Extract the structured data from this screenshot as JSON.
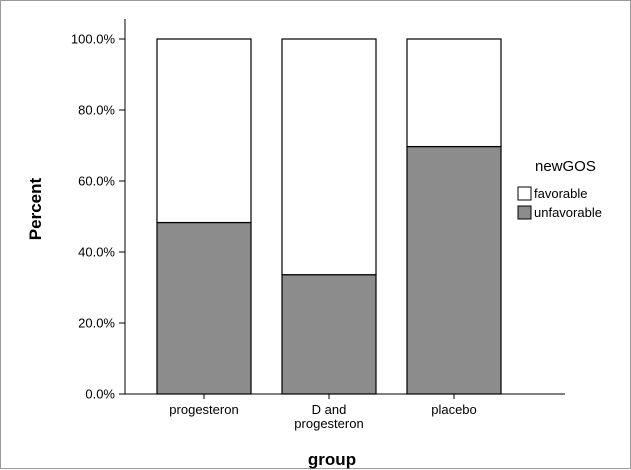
{
  "chart_data": {
    "type": "bar",
    "stacked": true,
    "categories": [
      "progesteron",
      "D and progesteron",
      "placebo"
    ],
    "category_label_lines": [
      [
        "progesteron"
      ],
      [
        "D and",
        "progesteron"
      ],
      [
        "placebo"
      ]
    ],
    "series": [
      {
        "name": "unfavorable",
        "values": [
          48.3,
          33.6,
          69.7
        ]
      },
      {
        "name": "favorable",
        "values": [
          51.7,
          66.4,
          30.3
        ]
      }
    ],
    "xlabel": "group",
    "ylabel": "Percent",
    "ylim": [
      0,
      100
    ],
    "yticks": [
      0,
      20,
      40,
      60,
      80,
      100
    ],
    "ytick_labels": [
      "0.0%",
      "20.0%",
      "40.0%",
      "60.0%",
      "80.0%",
      "100.0%"
    ],
    "legend": {
      "title": "newGOS",
      "entries": [
        "favorable",
        "unfavorable"
      ],
      "placement": "right"
    },
    "grid": false,
    "colors": {
      "unfavorable": "#8c8c8c",
      "favorable": "#ffffff",
      "outline": "#000000"
    }
  }
}
